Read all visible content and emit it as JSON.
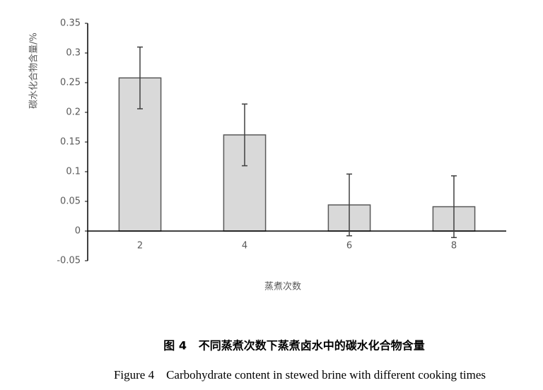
{
  "chart_data": {
    "type": "bar",
    "x_label": "蒸煮次数",
    "y_label": "碳水化合物含量/%",
    "caption": "图 4   不同蒸煮次数下蒸煮卤水中的碳水化合物含量",
    "caption_en": "Figure 4    Carbohydrate content in stewed brine with different cooking times",
    "categories": [
      "2",
      "4",
      "6",
      "8"
    ],
    "values": [
      0.258,
      0.162,
      0.044,
      0.041
    ],
    "errors": [
      0.052,
      0.052,
      0.052,
      0.052
    ],
    "color": "#d9d9d9",
    "edge_color": "#595959",
    "ylim": [
      -0.05,
      0.35
    ],
    "yticks": [
      -0.05,
      0,
      0.05,
      0.1,
      0.15,
      0.2,
      0.25,
      0.3,
      0.35
    ],
    "grid": false
  }
}
